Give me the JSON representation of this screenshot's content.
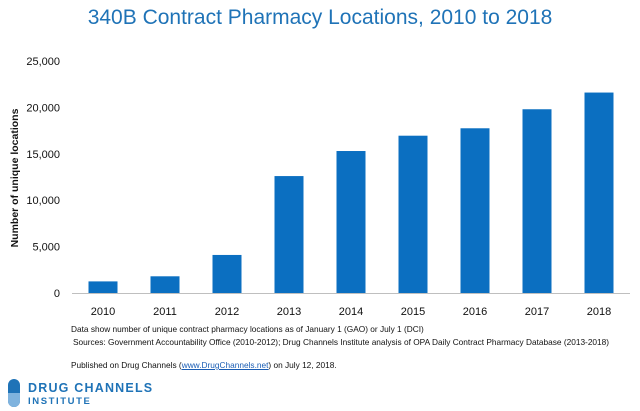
{
  "chart_data": {
    "type": "bar",
    "title": "340B Contract Pharmacy Locations, 2010 to 2018",
    "ylabel": "Number of unique locations",
    "xlabel": "",
    "categories": [
      "2010",
      "2011",
      "2012",
      "2013",
      "2014",
      "2015",
      "2016",
      "2017",
      "2018"
    ],
    "values": [
      1250,
      1800,
      4100,
      12600,
      15300,
      16950,
      17750,
      19800,
      21600
    ],
    "ylim": [
      0,
      25000
    ],
    "yticks": [
      0,
      5000,
      10000,
      15000,
      20000,
      25000
    ],
    "ytick_labels": [
      "0",
      "5,000",
      "10,000",
      "15,000",
      "20,000",
      "25,000"
    ],
    "grid": false,
    "bar_color": "#0b6fc1"
  },
  "notes": {
    "line1": "Data show number of unique contract pharmacy locations as of January 1 (GAO) or July 1 (DCI)",
    "line2": "Sources: Government Accountability Office (2010-2012); Drug Channels Institute analysis of OPA Daily Contract Pharmacy Database (2013-2018)",
    "published_prefix": "Published on Drug Channels (",
    "published_link": "www.DrugChannels.net",
    "published_suffix": ") on July 12, 2018."
  },
  "logo": {
    "line1": "DRUG CHANNELS",
    "line2": "INSTITUTE",
    "icon": "capsule-icon",
    "color": "#1f73b7"
  }
}
